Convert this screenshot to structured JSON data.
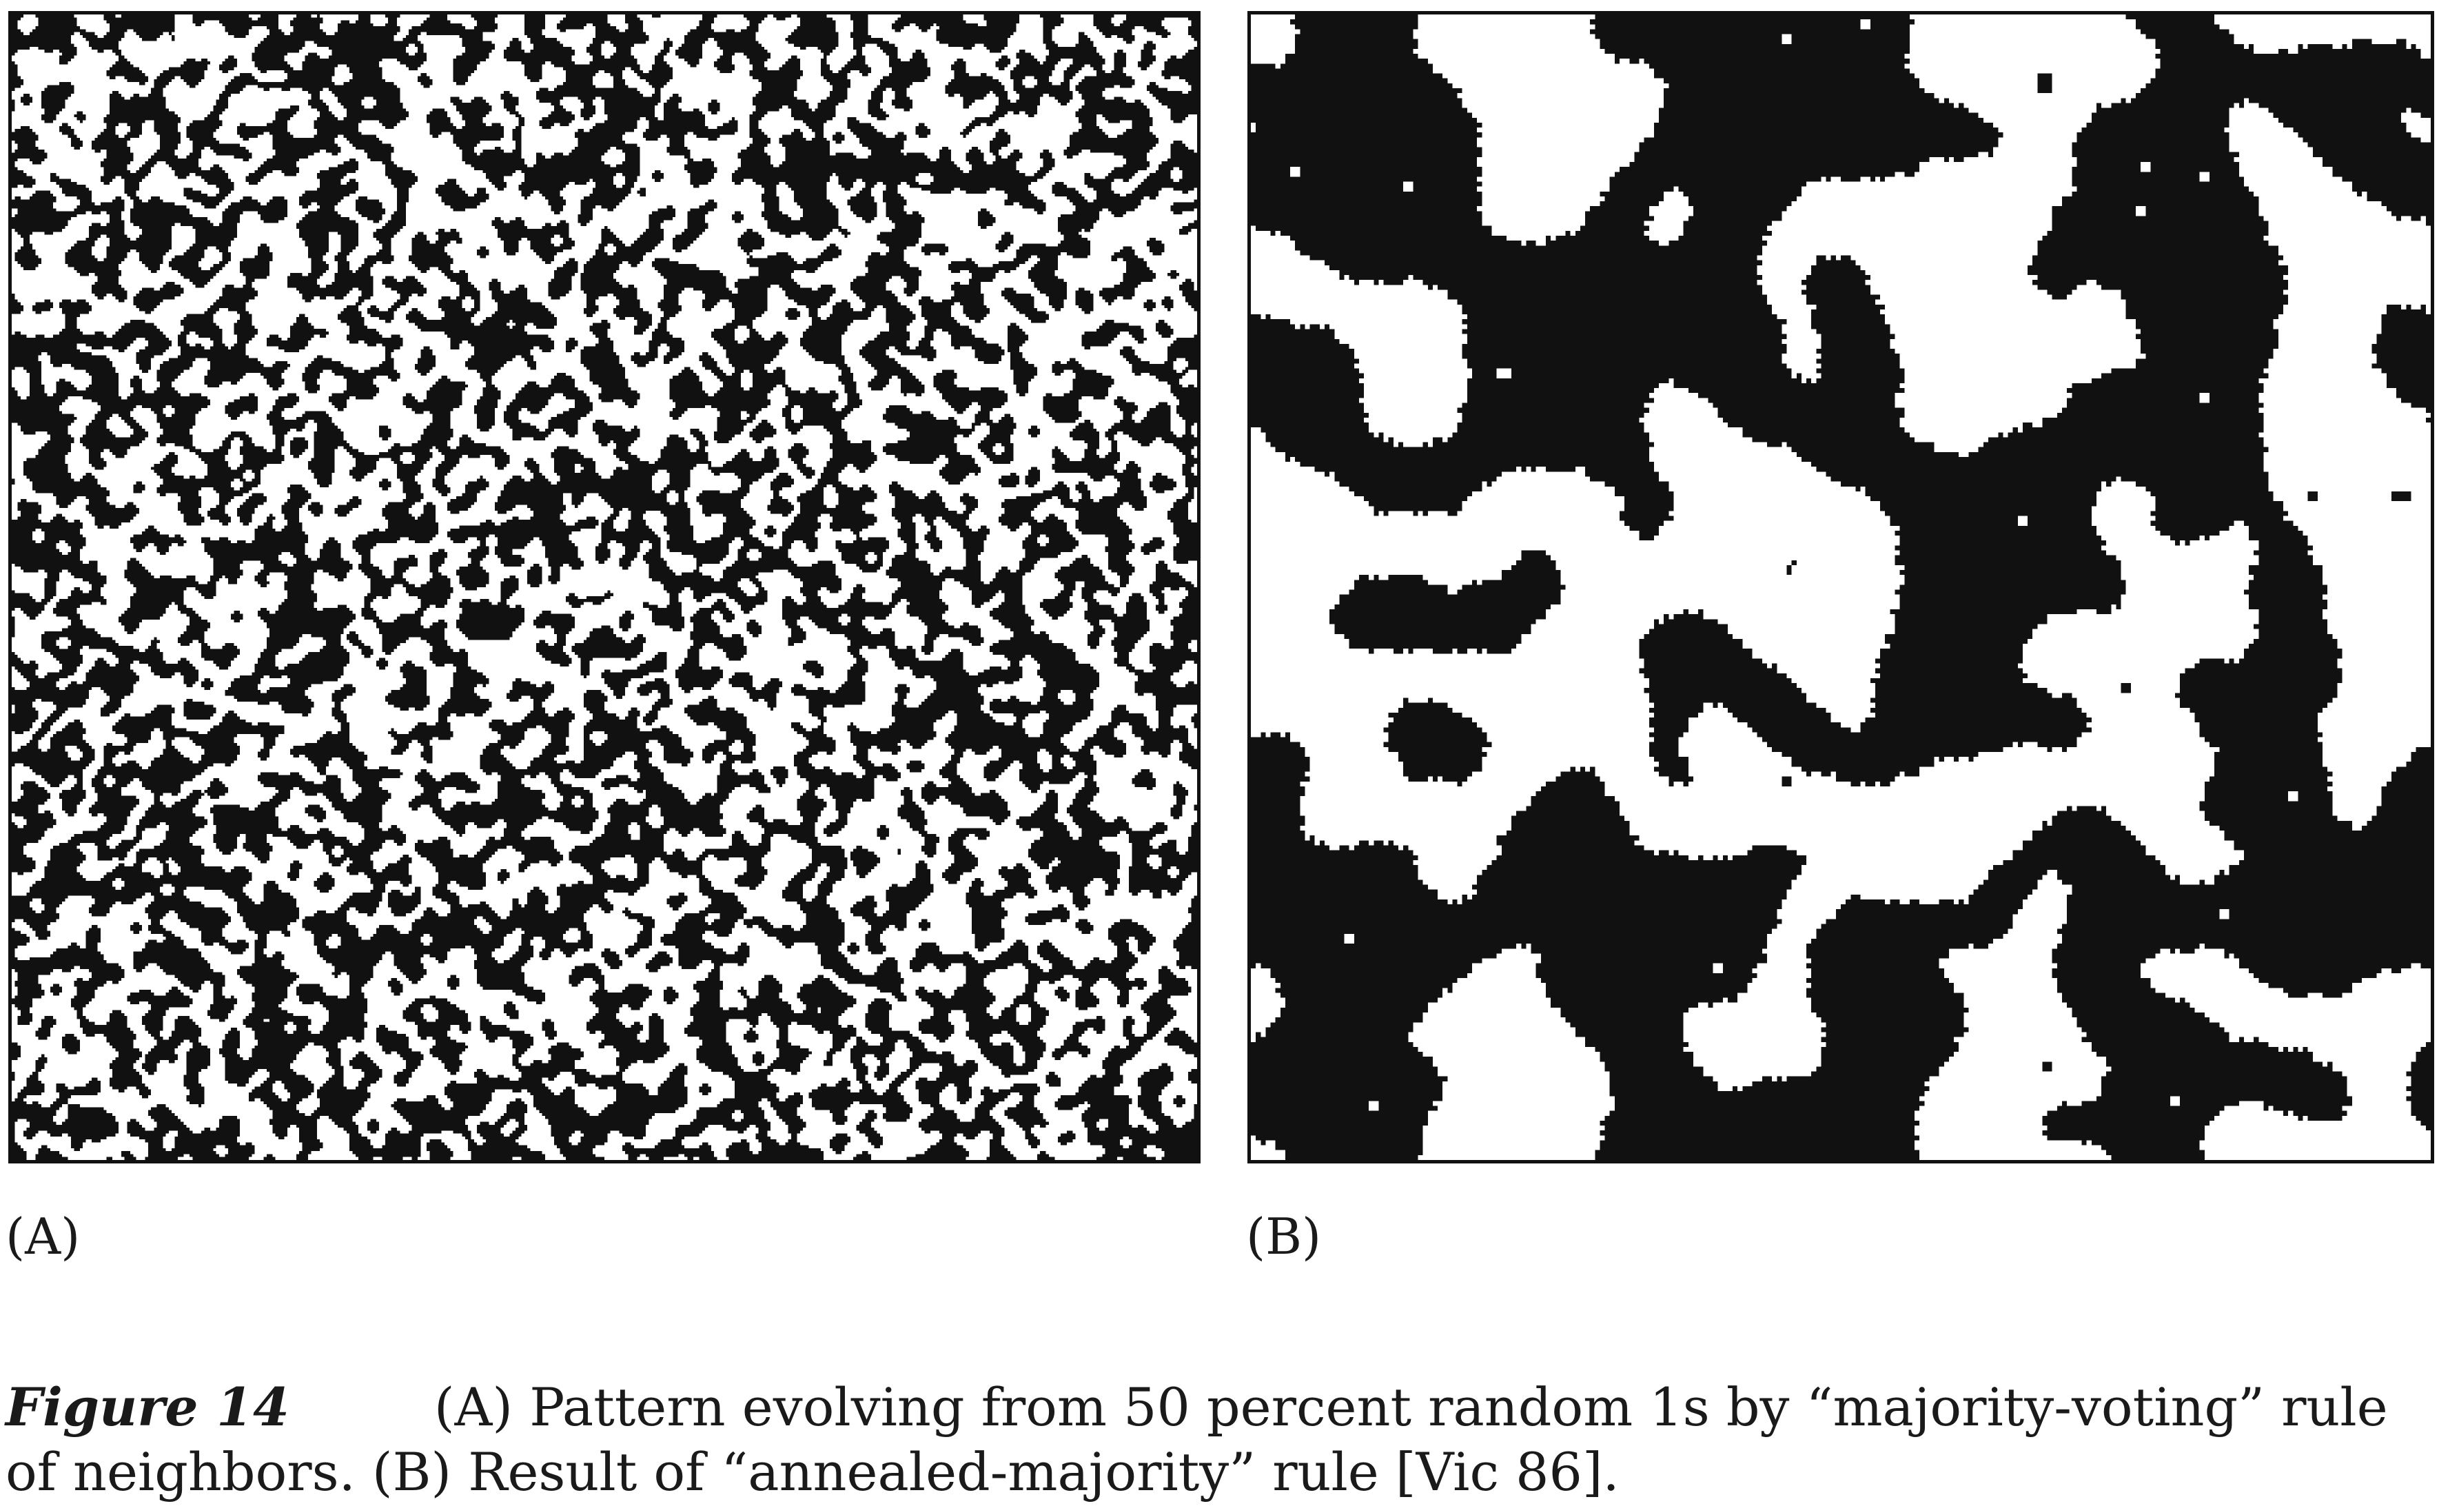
{
  "figure": {
    "panels": [
      {
        "id": "A",
        "label": "(A)",
        "pattern": "majority-voting"
      },
      {
        "id": "B",
        "label": "(B)",
        "pattern": "annealed-majority"
      }
    ],
    "caption": {
      "number": "Figure 14",
      "text": "(A) Pattern evolving from 50 percent random 1s by “majority-voting” rule of neighbors. (B) Result of “annealed-majority” rule [Vic 86]."
    },
    "colors": {
      "ink": "#111111",
      "paper": "#ffffff"
    }
  }
}
